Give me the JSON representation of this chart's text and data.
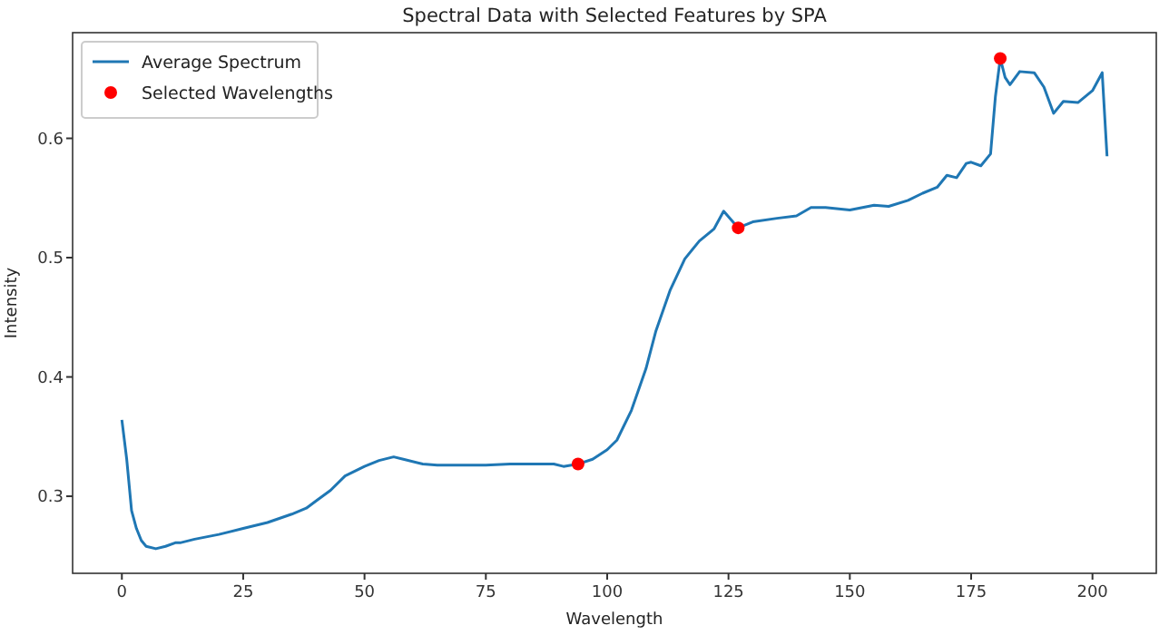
{
  "chart_data": {
    "type": "line",
    "title": "Spectral Data with Selected Features by SPA",
    "xlabel": "Wavelength",
    "ylabel": "Intensity",
    "xlim": [
      -10.15,
      213.15
    ],
    "ylim": [
      0.2354,
      0.6886
    ],
    "xticks": [
      0,
      25,
      50,
      75,
      100,
      125,
      150,
      175,
      200
    ],
    "yticks": [
      0.3,
      0.4,
      0.5,
      0.6
    ],
    "legend": "top left",
    "grid": false,
    "series": [
      {
        "name": "Average Spectrum",
        "color": "#1f77b4",
        "x": [
          0,
          1,
          2,
          3,
          4,
          5,
          7,
          9,
          11,
          12,
          15,
          20,
          25,
          30,
          35,
          38,
          40,
          43,
          46,
          50,
          53,
          56,
          58,
          62,
          65,
          70,
          75,
          80,
          85,
          89,
          91,
          94,
          97,
          100,
          102,
          105,
          108,
          110,
          113,
          116,
          119,
          122,
          124,
          127,
          130,
          135,
          139,
          142,
          145,
          150,
          155,
          158,
          162,
          165,
          168,
          170,
          172,
          174,
          175,
          177,
          179,
          180,
          181,
          182,
          183,
          185,
          188,
          190,
          192,
          194,
          197,
          200,
          202,
          203
        ],
        "values": [
          0.364,
          0.331,
          0.288,
          0.273,
          0.263,
          0.258,
          0.256,
          0.258,
          0.261,
          0.261,
          0.264,
          0.268,
          0.273,
          0.278,
          0.285,
          0.29,
          0.296,
          0.305,
          0.317,
          0.325,
          0.33,
          0.333,
          0.331,
          0.327,
          0.326,
          0.326,
          0.326,
          0.327,
          0.327,
          0.327,
          0.325,
          0.327,
          0.331,
          0.339,
          0.347,
          0.372,
          0.407,
          0.438,
          0.473,
          0.499,
          0.514,
          0.524,
          0.539,
          0.525,
          0.53,
          0.533,
          0.535,
          0.542,
          0.542,
          0.54,
          0.544,
          0.543,
          0.548,
          0.554,
          0.559,
          0.569,
          0.567,
          0.579,
          0.58,
          0.577,
          0.587,
          0.635,
          0.667,
          0.651,
          0.645,
          0.656,
          0.655,
          0.643,
          0.621,
          0.631,
          0.63,
          0.64,
          0.655,
          0.585
        ]
      },
      {
        "name": "Selected Wavelengths",
        "type": "scatter",
        "color": "#ff0000",
        "marker": "circle",
        "x": [
          94,
          127,
          181
        ],
        "values": [
          0.327,
          0.525,
          0.667
        ]
      }
    ]
  }
}
